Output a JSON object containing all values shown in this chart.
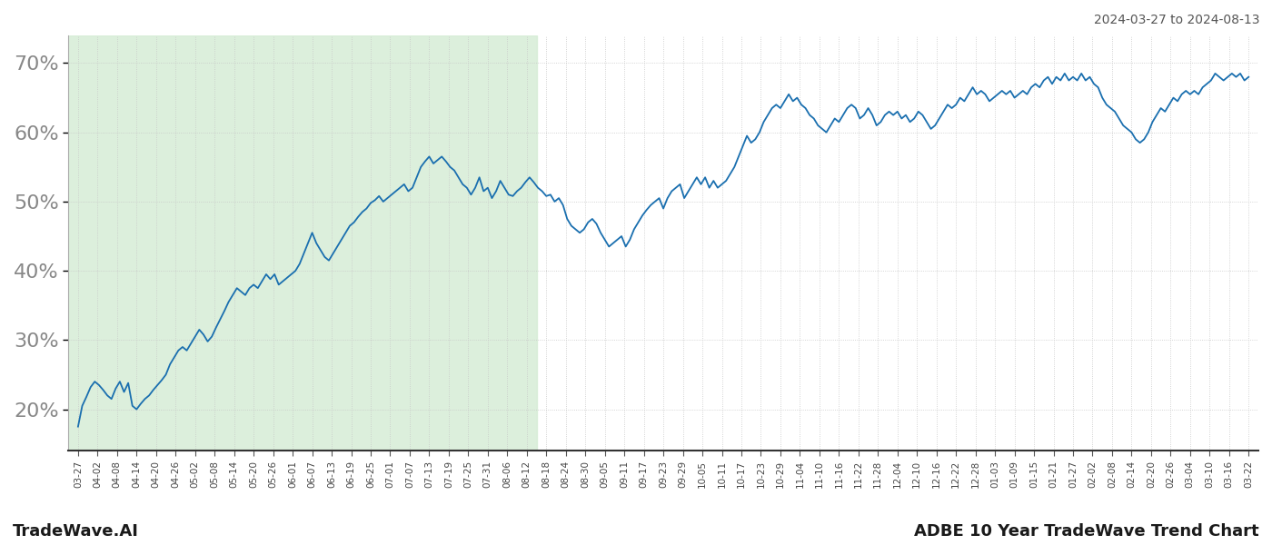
{
  "title_top_right": "2024-03-27 to 2024-08-13",
  "label_bottom_left": "TradeWave.AI",
  "label_bottom_right": "ADBE 10 Year TradeWave Trend Chart",
  "line_color": "#1a6faf",
  "shade_color": "#d4ecd4",
  "shade_alpha": 0.8,
  "ylim": [
    14,
    74
  ],
  "yticks": [
    20,
    30,
    40,
    50,
    60,
    70
  ],
  "background_color": "#ffffff",
  "grid_color": "#c8c8c8",
  "x_labels": [
    "03-27",
    "04-02",
    "04-08",
    "04-14",
    "04-20",
    "04-26",
    "05-02",
    "05-08",
    "05-14",
    "05-20",
    "05-26",
    "06-01",
    "06-07",
    "06-13",
    "06-19",
    "06-25",
    "07-01",
    "07-07",
    "07-13",
    "07-19",
    "07-25",
    "07-31",
    "08-06",
    "08-12",
    "08-18",
    "08-24",
    "08-30",
    "09-05",
    "09-11",
    "09-17",
    "09-23",
    "09-29",
    "10-05",
    "10-11",
    "10-17",
    "10-23",
    "10-29",
    "11-04",
    "11-10",
    "11-16",
    "11-22",
    "11-28",
    "12-04",
    "12-10",
    "12-16",
    "12-22",
    "12-28",
    "01-03",
    "01-09",
    "01-15",
    "01-21",
    "01-27",
    "02-02",
    "02-08",
    "02-14",
    "02-20",
    "02-26",
    "03-04",
    "03-10",
    "03-16",
    "03-22"
  ],
  "shade_end_label": "08-12",
  "values": [
    17.5,
    20.5,
    21.8,
    23.2,
    24.0,
    23.5,
    22.8,
    22.0,
    21.5,
    23.0,
    24.0,
    22.5,
    23.8,
    20.5,
    20.0,
    20.8,
    21.5,
    22.0,
    22.8,
    23.5,
    24.2,
    25.0,
    26.5,
    27.5,
    28.5,
    29.0,
    28.5,
    29.5,
    30.5,
    31.5,
    30.8,
    29.8,
    30.5,
    31.8,
    33.0,
    34.2,
    35.5,
    36.5,
    37.5,
    37.0,
    36.5,
    37.5,
    38.0,
    37.5,
    38.5,
    39.5,
    38.8,
    39.5,
    38.0,
    38.5,
    39.0,
    39.5,
    40.0,
    41.0,
    42.5,
    44.0,
    45.5,
    44.0,
    43.0,
    42.0,
    41.5,
    42.5,
    43.5,
    44.5,
    45.5,
    46.5,
    47.0,
    47.8,
    48.5,
    49.0,
    49.8,
    50.2,
    50.8,
    50.0,
    50.5,
    51.0,
    51.5,
    52.0,
    52.5,
    51.5,
    52.0,
    53.5,
    55.0,
    55.8,
    56.5,
    55.5,
    56.0,
    56.5,
    55.8,
    55.0,
    54.5,
    53.5,
    52.5,
    52.0,
    51.0,
    52.0,
    53.5,
    51.5,
    52.0,
    50.5,
    51.5,
    53.0,
    52.0,
    51.0,
    50.8,
    51.5,
    52.0,
    52.8,
    53.5,
    52.8,
    52.0,
    51.5,
    50.8,
    51.0,
    50.0,
    50.5,
    49.5,
    47.5,
    46.5,
    46.0,
    45.5,
    46.0,
    47.0,
    47.5,
    46.8,
    45.5,
    44.5,
    43.5,
    44.0,
    44.5,
    45.0,
    43.5,
    44.5,
    46.0,
    47.0,
    48.0,
    48.8,
    49.5,
    50.0,
    50.5,
    49.0,
    50.5,
    51.5,
    52.0,
    52.5,
    50.5,
    51.5,
    52.5,
    53.5,
    52.5,
    53.5,
    52.0,
    53.0,
    52.0,
    52.5,
    53.0,
    54.0,
    55.0,
    56.5,
    58.0,
    59.5,
    58.5,
    59.0,
    60.0,
    61.5,
    62.5,
    63.5,
    64.0,
    63.5,
    64.5,
    65.5,
    64.5,
    65.0,
    64.0,
    63.5,
    62.5,
    62.0,
    61.0,
    60.5,
    60.0,
    61.0,
    62.0,
    61.5,
    62.5,
    63.5,
    64.0,
    63.5,
    62.0,
    62.5,
    63.5,
    62.5,
    61.0,
    61.5,
    62.5,
    63.0,
    62.5,
    63.0,
    62.0,
    62.5,
    61.5,
    62.0,
    63.0,
    62.5,
    61.5,
    60.5,
    61.0,
    62.0,
    63.0,
    64.0,
    63.5,
    64.0,
    65.0,
    64.5,
    65.5,
    66.5,
    65.5,
    66.0,
    65.5,
    64.5,
    65.0,
    65.5,
    66.0,
    65.5,
    66.0,
    65.0,
    65.5,
    66.0,
    65.5,
    66.5,
    67.0,
    66.5,
    67.5,
    68.0,
    67.0,
    68.0,
    67.5,
    68.5,
    67.5,
    68.0,
    67.5,
    68.5,
    67.5,
    68.0,
    67.0,
    66.5,
    65.0,
    64.0,
    63.5,
    63.0,
    62.0,
    61.0,
    60.5,
    60.0,
    59.0,
    58.5,
    59.0,
    60.0,
    61.5,
    62.5,
    63.5,
    63.0,
    64.0,
    65.0,
    64.5,
    65.5,
    66.0,
    65.5,
    66.0,
    65.5,
    66.5,
    67.0,
    67.5,
    68.5,
    68.0,
    67.5,
    68.0,
    68.5,
    68.0,
    68.5,
    67.5,
    68.0
  ]
}
